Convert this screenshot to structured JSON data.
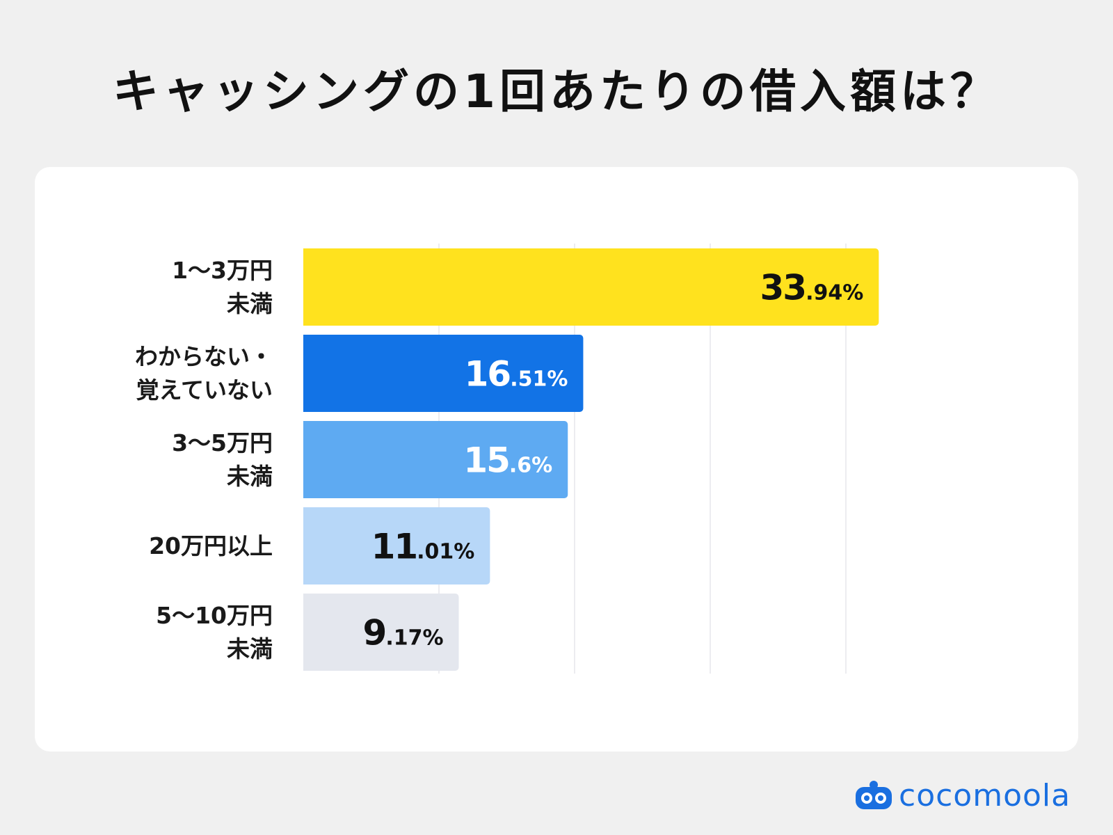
{
  "title": "キャッシングの1回あたりの借入額は？",
  "brand": {
    "name": "cocomoola",
    "color": "#1a6fe0",
    "icon": "cocomoola-logo-icon"
  },
  "chart_data": {
    "type": "bar",
    "orientation": "horizontal",
    "categories": [
      "1〜3万円\n未満",
      "わからない・\n覚えていない",
      "3〜5万円\n未満",
      "20万円以上",
      "5〜10万円\n未満"
    ],
    "values": [
      33.94,
      16.51,
      15.6,
      11.01,
      9.17
    ],
    "value_labels": [
      {
        "int": "33",
        "dec": ".94%"
      },
      {
        "int": "16",
        "dec": ".51%"
      },
      {
        "int": "15",
        "dec": ".6%"
      },
      {
        "int": "11",
        "dec": ".01%"
      },
      {
        "int": "9",
        "dec": ".17%"
      }
    ],
    "colors": [
      "#ffe21e",
      "#1273e6",
      "#5eaaf2",
      "#b7d7f8",
      "#e4e7ee"
    ],
    "label_colors": [
      "#111111",
      "#ffffff",
      "#ffffff",
      "#111111",
      "#111111"
    ],
    "xlim": [
      0,
      40
    ],
    "grid": true,
    "legend": "none"
  }
}
